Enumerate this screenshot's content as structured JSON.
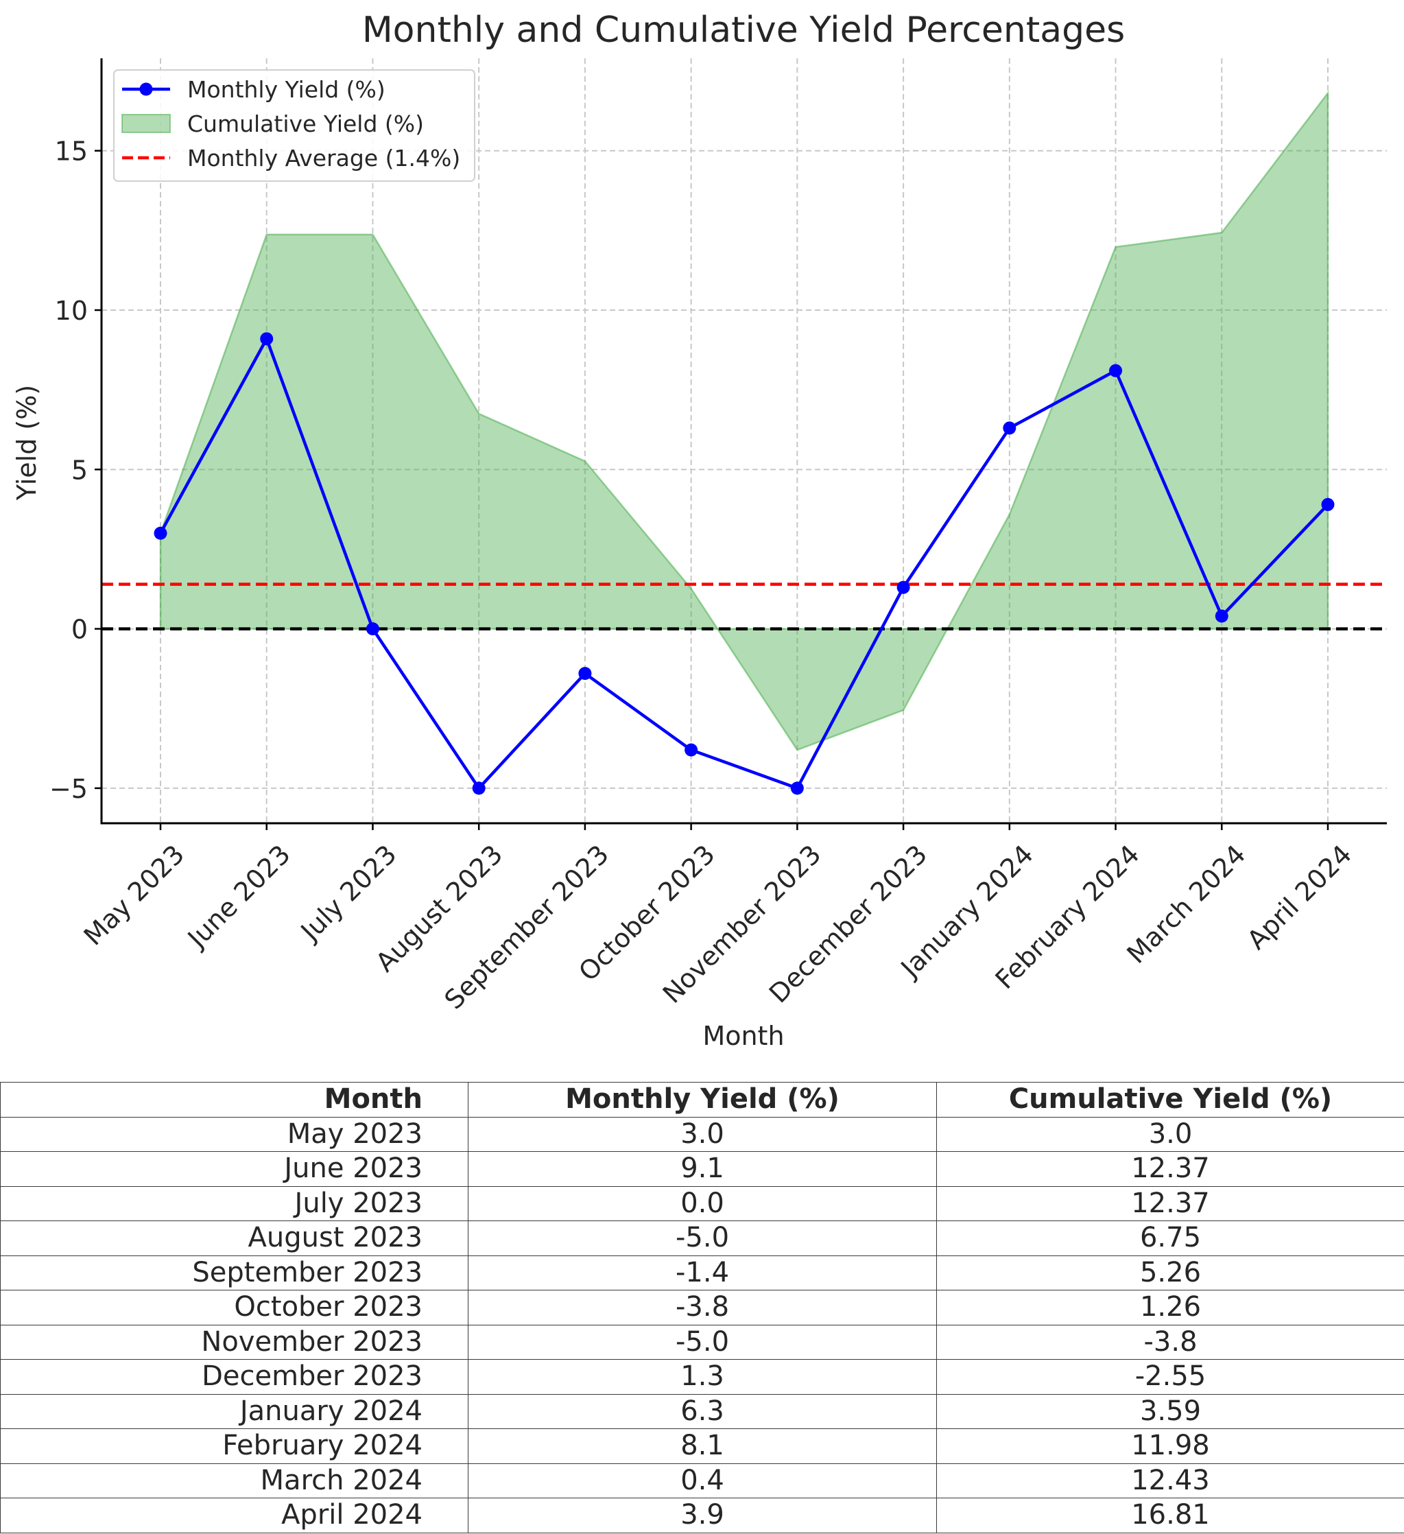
{
  "chart_data": {
    "type": "line",
    "title": "Monthly and Cumulative Yield Percentages",
    "xlabel": "Month",
    "ylabel": "Yield (%)",
    "categories": [
      "May 2023",
      "June 2023",
      "July 2023",
      "August 2023",
      "September 2023",
      "October 2023",
      "November 2023",
      "December 2023",
      "January 2024",
      "February 2024",
      "March 2024",
      "April 2024"
    ],
    "series": [
      {
        "name": "Monthly Yield (%)",
        "type": "line",
        "color": "#0000ff",
        "marker": "circle",
        "values": [
          3.0,
          9.1,
          0.0,
          -5.0,
          -1.4,
          -3.8,
          -5.0,
          1.3,
          6.3,
          8.1,
          0.4,
          3.9
        ]
      },
      {
        "name": "Cumulative Yield (%)",
        "type": "area",
        "color": "#4caf50",
        "values": [
          3.0,
          12.37,
          12.37,
          6.75,
          5.26,
          1.26,
          -3.8,
          -2.55,
          3.59,
          11.98,
          12.43,
          16.81
        ]
      }
    ],
    "reference_lines": [
      {
        "name": "Monthly Average (1.4%)",
        "value": 1.4,
        "color": "#ff0000",
        "style": "dashed"
      },
      {
        "value": 0,
        "color": "#000000",
        "style": "dashed"
      }
    ],
    "yticks": [
      -5,
      0,
      5,
      10,
      15
    ],
    "ylim": [
      -6.1,
      17.9
    ],
    "grid": true,
    "legend": "top-left"
  },
  "table": {
    "headers": [
      "Month",
      "Monthly Yield (%)",
      "Cumulative Yield (%)"
    ],
    "rows": [
      [
        "May 2023",
        "3.0",
        "3.0"
      ],
      [
        "June 2023",
        "9.1",
        "12.37"
      ],
      [
        "July 2023",
        "0.0",
        "12.37"
      ],
      [
        "August 2023",
        "-5.0",
        "6.75"
      ],
      [
        "September 2023",
        "-1.4",
        "5.26"
      ],
      [
        "October 2023",
        "-3.8",
        "1.26"
      ],
      [
        "November 2023",
        "-5.0",
        "-3.8"
      ],
      [
        "December 2023",
        "1.3",
        "-2.55"
      ],
      [
        "January 2024",
        "6.3",
        "3.59"
      ],
      [
        "February 2024",
        "8.1",
        "11.98"
      ],
      [
        "March 2024",
        "0.4",
        "12.43"
      ],
      [
        "April 2024",
        "3.9",
        "16.81"
      ]
    ]
  }
}
